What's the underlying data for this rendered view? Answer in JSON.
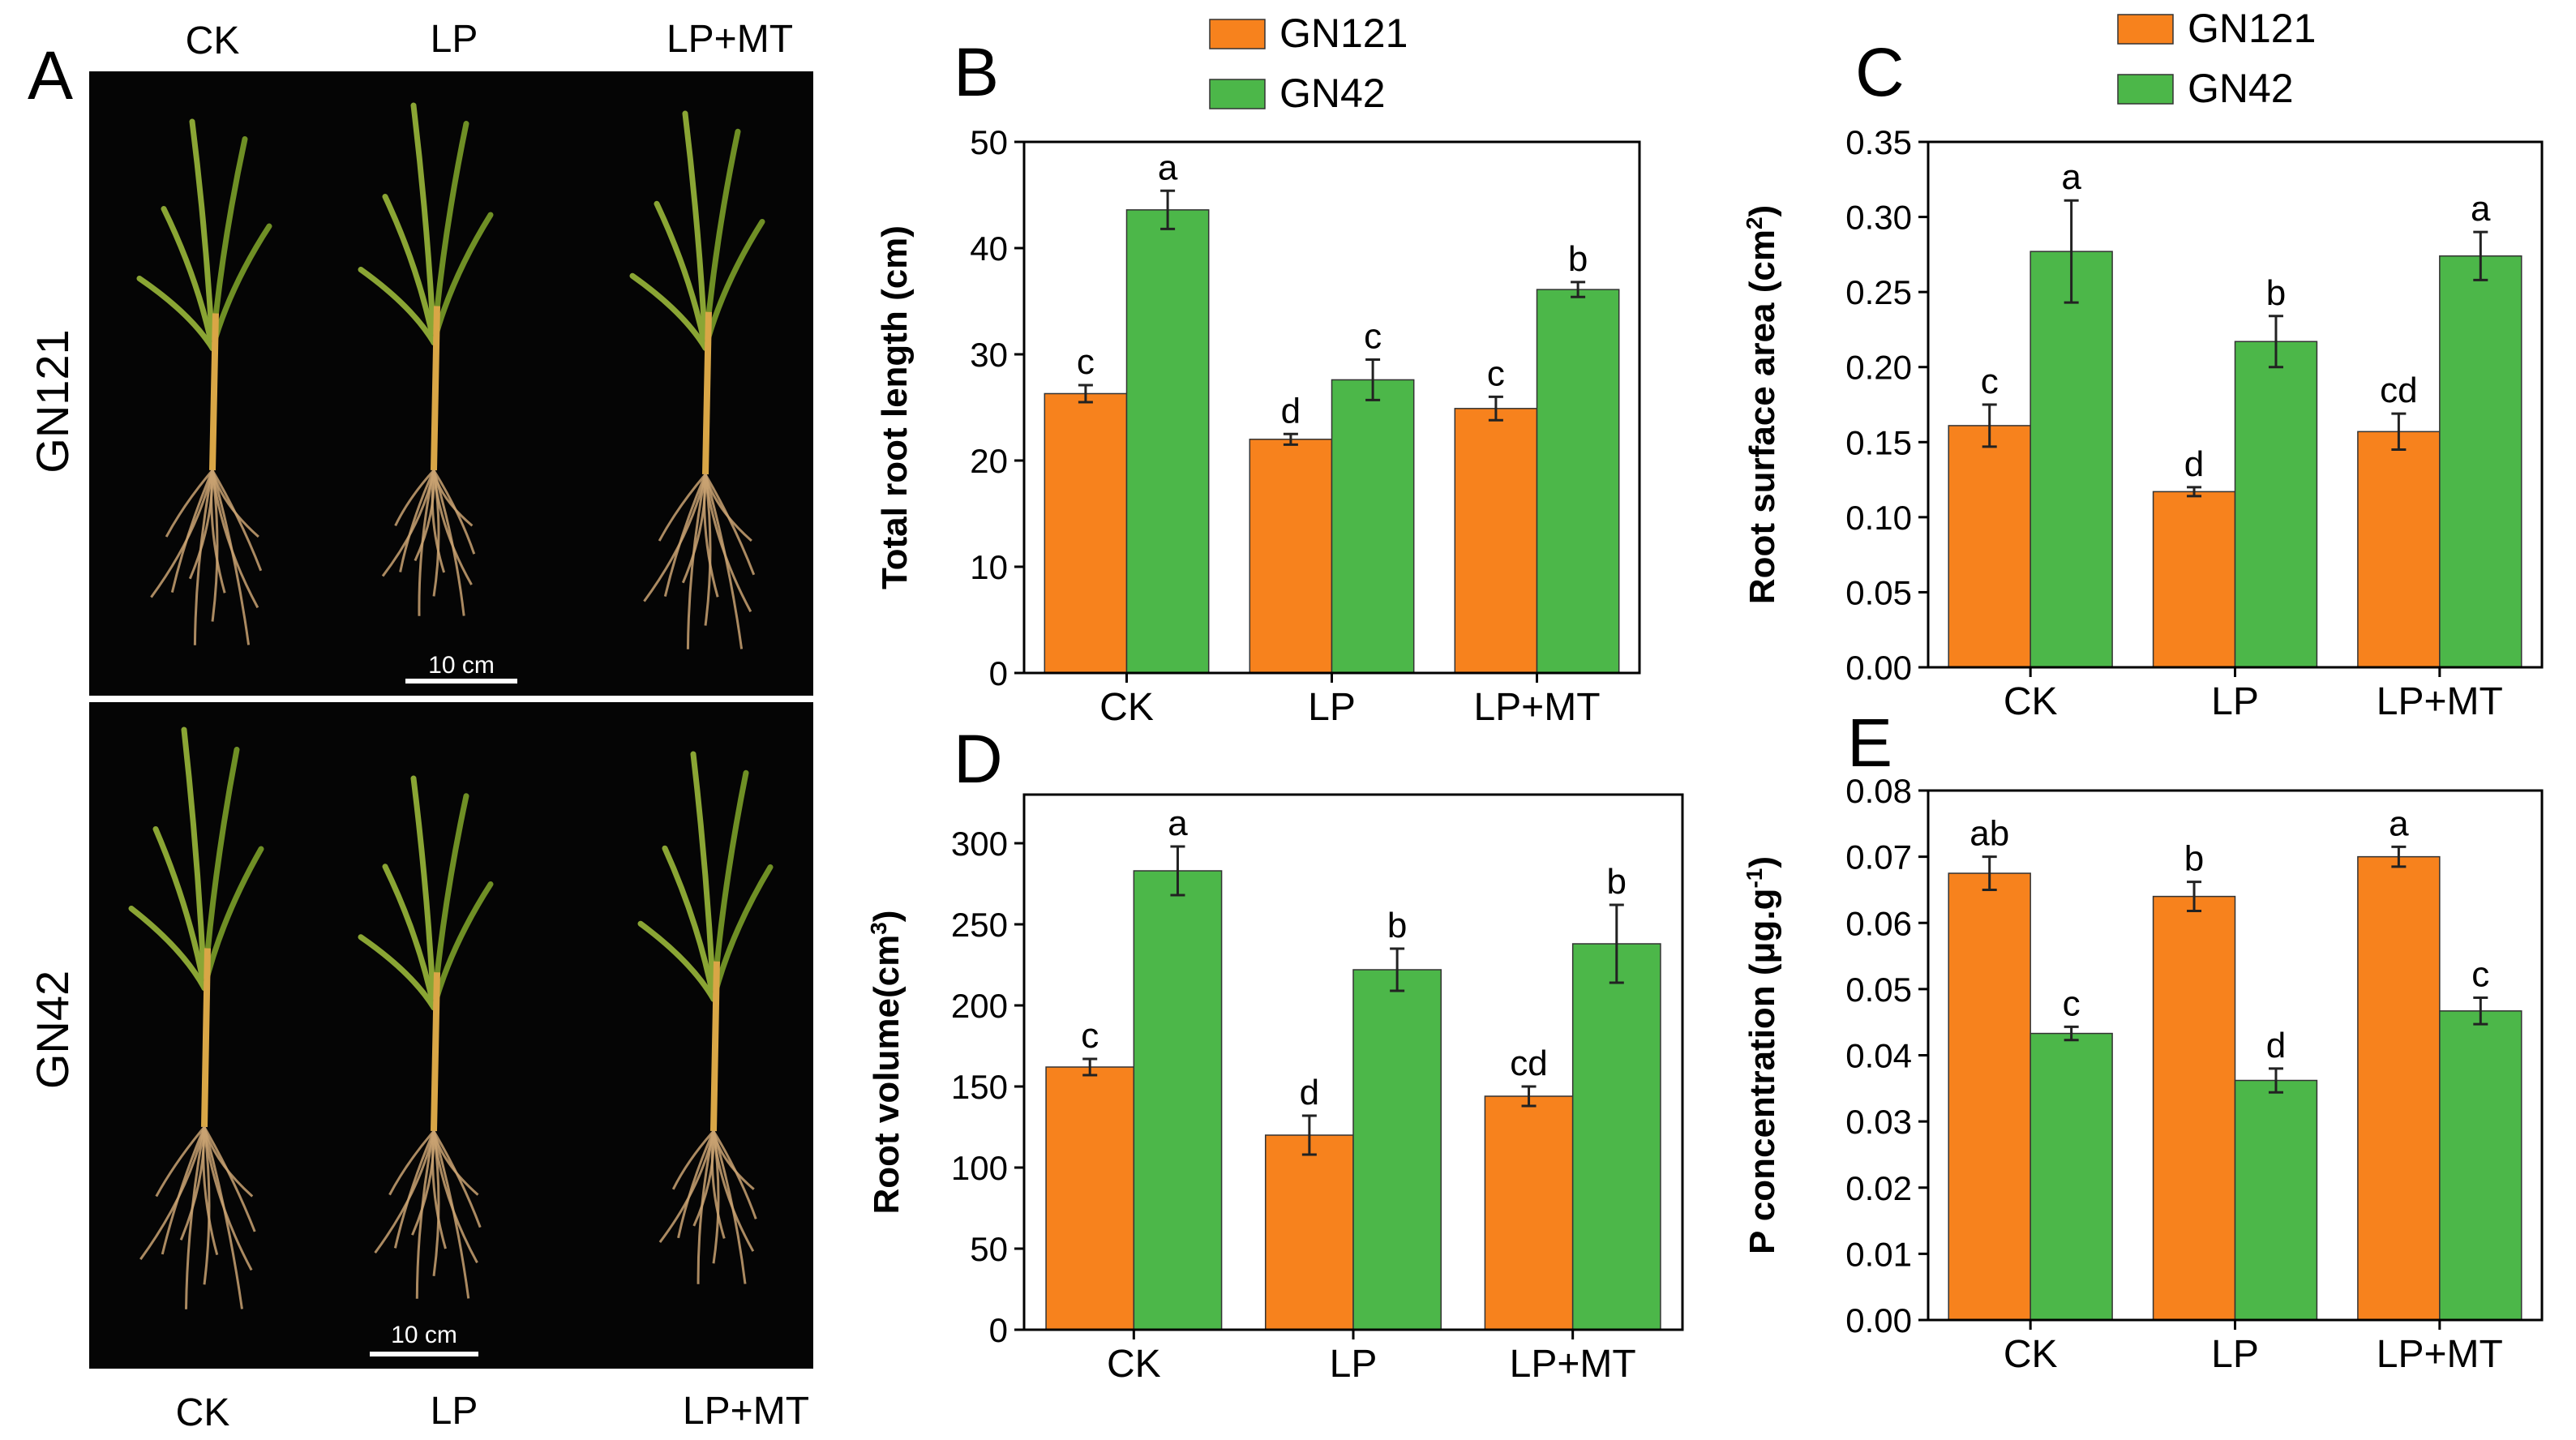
{
  "panel_a": {
    "letter": "A",
    "top_labels": [
      "CK",
      "LP",
      "LP+MT"
    ],
    "bottom_labels": [
      "CK",
      "LP",
      "LP+MT"
    ],
    "row_labels": [
      "GN121",
      "GN42"
    ],
    "scale_bar_labels": [
      "10 cm",
      "10 cm"
    ]
  },
  "colors": {
    "GN121": "#f7821d",
    "GN42": "#4cb749",
    "photo_bg": "#050505"
  },
  "chart_data": [
    {
      "panel": "B",
      "type": "bar",
      "categories": [
        "CK",
        "LP",
        "LP+MT"
      ],
      "ylabel_parts": [
        "Total root length (cm)"
      ],
      "ylim": [
        0,
        50
      ],
      "yticks": [
        0,
        10,
        20,
        30,
        40,
        50
      ],
      "tick_decimals": 0,
      "legend": [
        "GN121",
        "GN42"
      ],
      "series": [
        {
          "name": "GN121",
          "values": [
            26.3,
            22.0,
            24.9
          ],
          "errors": [
            0.8,
            0.5,
            1.1
          ],
          "letters": [
            "c",
            "d",
            "c"
          ]
        },
        {
          "name": "GN42",
          "values": [
            43.6,
            27.6,
            36.1
          ],
          "errors": [
            1.8,
            1.9,
            0.7
          ],
          "letters": [
            "a",
            "c",
            "b"
          ]
        }
      ]
    },
    {
      "panel": "C",
      "type": "bar",
      "categories": [
        "CK",
        "LP",
        "LP+MT"
      ],
      "ylabel_parts": [
        "Root surface area (cm",
        "2",
        ")"
      ],
      "ylim": [
        0,
        0.35
      ],
      "yticks": [
        0,
        0.05,
        0.1,
        0.15,
        0.2,
        0.25,
        0.3,
        0.35
      ],
      "tick_decimals": 2,
      "legend": [
        "GN121",
        "GN42"
      ],
      "series": [
        {
          "name": "GN121",
          "values": [
            0.161,
            0.117,
            0.157
          ],
          "errors": [
            0.014,
            0.003,
            0.012
          ],
          "letters": [
            "c",
            "d",
            "cd"
          ]
        },
        {
          "name": "GN42",
          "values": [
            0.277,
            0.217,
            0.274
          ],
          "errors": [
            0.034,
            0.017,
            0.016
          ],
          "letters": [
            "a",
            "b",
            "a"
          ]
        }
      ]
    },
    {
      "panel": "D",
      "type": "bar",
      "categories": [
        "CK",
        "LP",
        "LP+MT"
      ],
      "ylabel_parts": [
        "Root volume(cm",
        "3",
        ")"
      ],
      "ylim": [
        0,
        330
      ],
      "yticks": [
        0,
        50,
        100,
        150,
        200,
        250,
        300
      ],
      "tick_decimals": 0,
      "series": [
        {
          "name": "GN121",
          "values": [
            162,
            120,
            144
          ],
          "errors": [
            5,
            12,
            6
          ],
          "letters": [
            "c",
            "d",
            "cd"
          ]
        },
        {
          "name": "GN42",
          "values": [
            283,
            222,
            238
          ],
          "errors": [
            15,
            13,
            24
          ],
          "letters": [
            "a",
            "b",
            "b"
          ]
        }
      ]
    },
    {
      "panel": "E",
      "type": "bar",
      "categories": [
        "CK",
        "LP",
        "LP+MT"
      ],
      "ylabel_parts": [
        "P concentration (μg.g",
        "-1",
        ")"
      ],
      "ylim": [
        0,
        0.08
      ],
      "yticks": [
        0,
        0.01,
        0.02,
        0.03,
        0.04,
        0.05,
        0.06,
        0.07,
        0.08
      ],
      "tick_decimals": 2,
      "series": [
        {
          "name": "GN121",
          "values": [
            0.0675,
            0.064,
            0.07
          ],
          "errors": [
            0.0025,
            0.0022,
            0.0015
          ],
          "letters": [
            "ab",
            "b",
            "a"
          ]
        },
        {
          "name": "GN42",
          "values": [
            0.0433,
            0.0362,
            0.0467
          ],
          "errors": [
            0.001,
            0.0018,
            0.002
          ],
          "letters": [
            "c",
            "d",
            "c"
          ]
        }
      ]
    }
  ]
}
